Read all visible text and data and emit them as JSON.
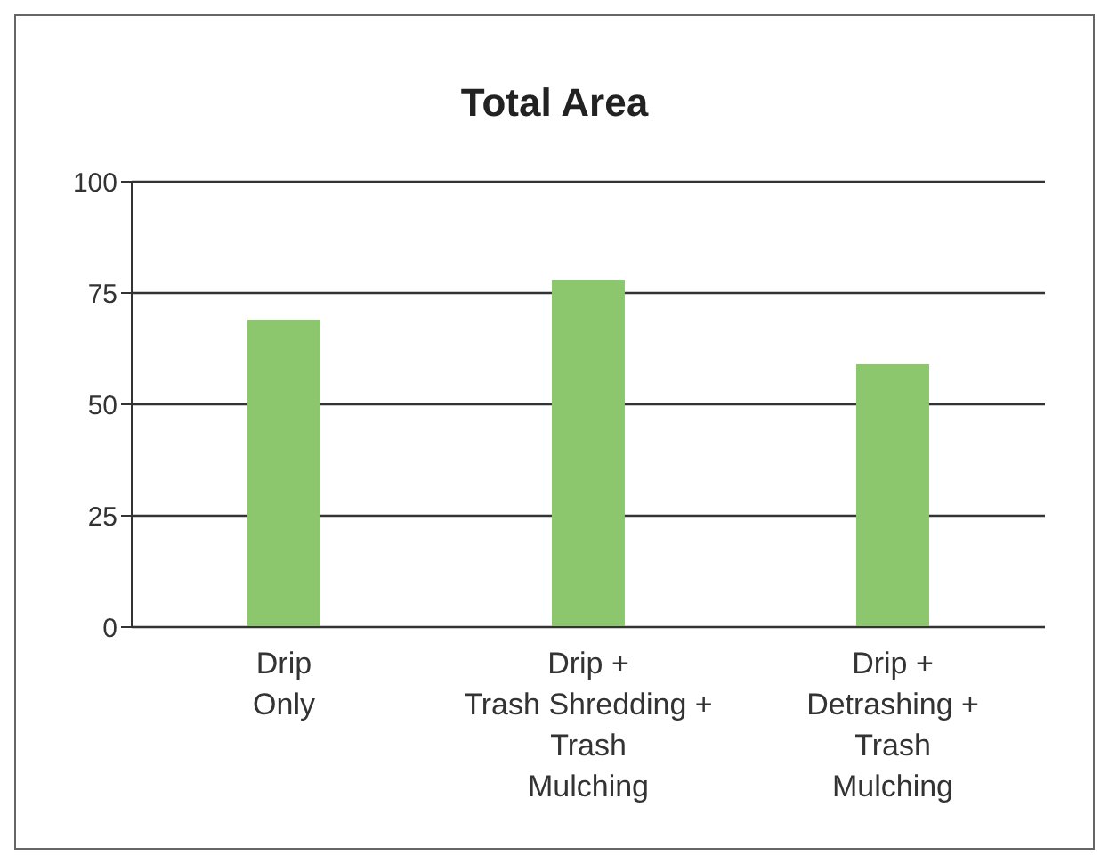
{
  "chart_data": {
    "type": "bar",
    "title": "Total Area",
    "categories": [
      "Drip\nOnly",
      "Drip +\nTrash Shredding +\nTrash\nMulching",
      "Drip +\nDetrashing +\nTrash\nMulching"
    ],
    "values": [
      69,
      78,
      59
    ],
    "color": "#8cc66d",
    "ylim": [
      0,
      100
    ],
    "yticks": [
      0,
      25,
      50,
      75,
      100
    ],
    "grid": "y"
  }
}
